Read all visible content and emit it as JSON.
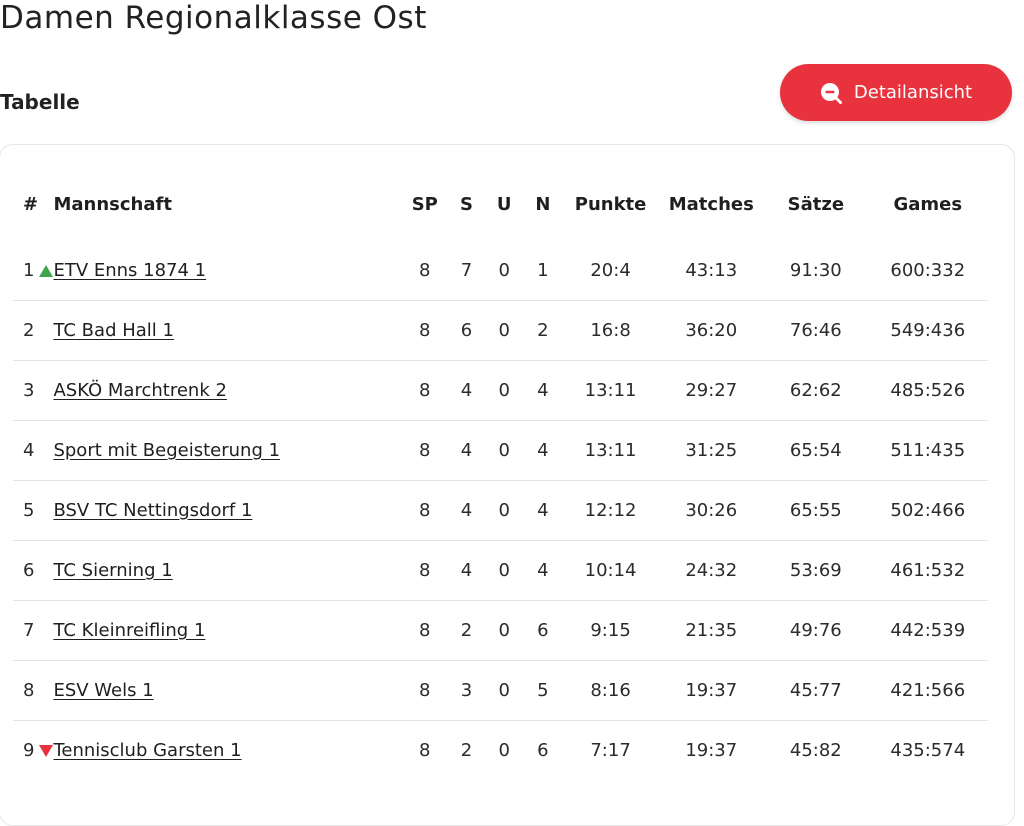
{
  "page_title": "Damen Regionalklasse Ost",
  "section_title": "Tabelle",
  "detail_button": {
    "label": "Detailansicht",
    "icon": "zoom-out-icon",
    "color": "#e8333f"
  },
  "table": {
    "headers": {
      "rank": "#",
      "team": "Mannschaft",
      "sp": "SP",
      "s": "S",
      "u": "U",
      "n": "N",
      "punkte": "Punkte",
      "matches": "Matches",
      "saetze": "Sätze",
      "games": "Games"
    },
    "rows": [
      {
        "rank": "1",
        "trend": "up",
        "team": "ETV Enns 1874 1",
        "sp": "8",
        "s": "7",
        "u": "0",
        "n": "1",
        "punkte": "20:4",
        "matches": "43:13",
        "saetze": "91:30",
        "games": "600:332"
      },
      {
        "rank": "2",
        "trend": "none",
        "team": "TC Bad Hall 1",
        "sp": "8",
        "s": "6",
        "u": "0",
        "n": "2",
        "punkte": "16:8",
        "matches": "36:20",
        "saetze": "76:46",
        "games": "549:436"
      },
      {
        "rank": "3",
        "trend": "none",
        "team": "ASKÖ Marchtrenk 2",
        "sp": "8",
        "s": "4",
        "u": "0",
        "n": "4",
        "punkte": "13:11",
        "matches": "29:27",
        "saetze": "62:62",
        "games": "485:526"
      },
      {
        "rank": "4",
        "trend": "none",
        "team": "Sport mit Begeisterung 1",
        "sp": "8",
        "s": "4",
        "u": "0",
        "n": "4",
        "punkte": "13:11",
        "matches": "31:25",
        "saetze": "65:54",
        "games": "511:435"
      },
      {
        "rank": "5",
        "trend": "none",
        "team": "BSV TC Nettingsdorf 1",
        "sp": "8",
        "s": "4",
        "u": "0",
        "n": "4",
        "punkte": "12:12",
        "matches": "30:26",
        "saetze": "65:55",
        "games": "502:466"
      },
      {
        "rank": "6",
        "trend": "none",
        "team": "TC Sierning 1",
        "sp": "8",
        "s": "4",
        "u": "0",
        "n": "4",
        "punkte": "10:14",
        "matches": "24:32",
        "saetze": "53:69",
        "games": "461:532"
      },
      {
        "rank": "7",
        "trend": "none",
        "team": "TC Kleinreifling 1",
        "sp": "8",
        "s": "2",
        "u": "0",
        "n": "6",
        "punkte": "9:15",
        "matches": "21:35",
        "saetze": "49:76",
        "games": "442:539"
      },
      {
        "rank": "8",
        "trend": "none",
        "team": "ESV Wels 1",
        "sp": "8",
        "s": "3",
        "u": "0",
        "n": "5",
        "punkte": "8:16",
        "matches": "19:37",
        "saetze": "45:77",
        "games": "421:566"
      },
      {
        "rank": "9",
        "trend": "down",
        "team": "Tennisclub Garsten 1",
        "sp": "8",
        "s": "2",
        "u": "0",
        "n": "6",
        "punkte": "7:17",
        "matches": "19:37",
        "saetze": "45:82",
        "games": "435:574"
      }
    ],
    "colors": {
      "up": "#3ea44e",
      "down": "#e8333f"
    }
  }
}
